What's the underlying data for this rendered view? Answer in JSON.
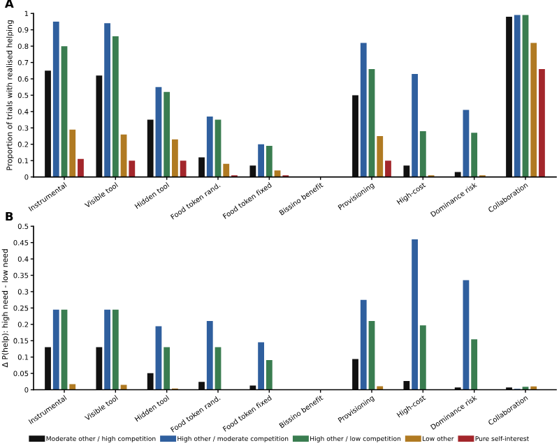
{
  "chart_data": [
    {
      "type": "bar",
      "ylabel": "Proportion of trials with realised helping",
      "annotations": [
        "A"
      ],
      "categories": [
        "Instrumental",
        "Visible tool",
        "Hidden tool",
        "Food token rand.",
        "Food token fixed",
        "Bissino benefit",
        "Provisioning",
        "High-cost",
        "Dominance risk",
        "Collaboration"
      ],
      "series": [
        {
          "name": "Moderate other / high competition",
          "color": "#111111",
          "values": [
            0.65,
            0.62,
            0.35,
            0.12,
            0.07,
            0,
            0.5,
            0.07,
            0.03,
            0.98
          ]
        },
        {
          "name": "High other / moderate competition",
          "color": "#2f5f9e",
          "values": [
            0.95,
            0.94,
            0.55,
            0.37,
            0.2,
            0,
            0.82,
            0.63,
            0.41,
            0.99
          ]
        },
        {
          "name": "High other / low competition",
          "color": "#3a7d50",
          "values": [
            0.8,
            0.86,
            0.52,
            0.35,
            0.19,
            0,
            0.66,
            0.28,
            0.27,
            0.99
          ]
        },
        {
          "name": "Low other",
          "color": "#b07a22",
          "values": [
            0.29,
            0.26,
            0.23,
            0.08,
            0.04,
            0,
            0.25,
            0.01,
            0.01,
            0.82
          ]
        },
        {
          "name": "Pure self-interest",
          "color": "#a3262b",
          "values": [
            0.11,
            0.1,
            0.1,
            0.01,
            0.01,
            0,
            0.1,
            0,
            0,
            0.66
          ]
        }
      ],
      "ylim": [
        0,
        1
      ],
      "yticks": [
        0,
        0.1,
        0.2,
        0.3,
        0.4,
        0.5,
        0.6,
        0.7,
        0.8,
        0.9,
        1
      ],
      "legend": "bottom"
    },
    {
      "type": "bar",
      "ylabel": "Δ P(help): high need - low need",
      "annotations": [
        "B"
      ],
      "categories": [
        "Instrumental",
        "Visible tool",
        "Hidden tool",
        "Food token rand.",
        "Food token fixed",
        "Bissino benefit",
        "Provisioning",
        "High-cost",
        "Dominance risk",
        "Collaboration"
      ],
      "series": [
        {
          "color": "#111111",
          "values": [
            0.13,
            0.13,
            0.051,
            0.024,
            0.013,
            0,
            0.094,
            0.027,
            0.007,
            0.007
          ]
        },
        {
          "color": "#2f5f9e",
          "values": [
            0.245,
            0.245,
            0.194,
            0.21,
            0.145,
            0,
            0.275,
            0.46,
            0.335,
            0.003
          ]
        },
        {
          "color": "#3a7d50",
          "values": [
            0.245,
            0.245,
            0.13,
            0.13,
            0.091,
            0,
            0.21,
            0.197,
            0.154,
            0.009
          ]
        },
        {
          "color": "#b07a22",
          "values": [
            0.017,
            0.015,
            0.004,
            null,
            0,
            0,
            0.011,
            0,
            0,
            0.01
          ]
        }
      ],
      "ylim": [
        0,
        0.5
      ],
      "yticks": [
        0,
        0.05,
        0.1,
        0.15,
        0.2,
        0.25,
        0.3,
        0.35,
        0.4,
        0.45,
        0.5
      ]
    }
  ]
}
